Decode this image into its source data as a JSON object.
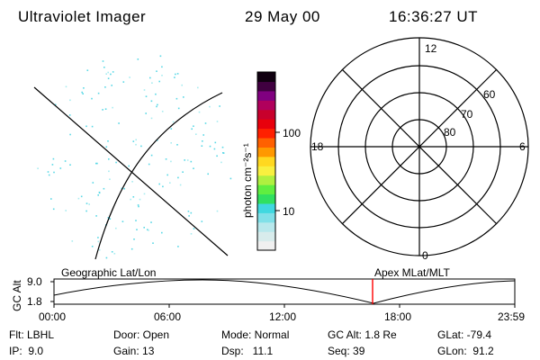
{
  "header": {
    "instrument": "Ultraviolet Imager",
    "date": "29 May 00",
    "time": "16:36:27 UT"
  },
  "colorbar": {
    "unit_label": "photon cm⁻²s⁻¹",
    "ticks": [
      "100",
      "10"
    ],
    "colors": [
      "#f0f0f0",
      "#d8ecec",
      "#b8e8ec",
      "#80e0e8",
      "#40d8e0",
      "#30e060",
      "#60ee40",
      "#b0f040",
      "#f8f040",
      "#ffd820",
      "#ff9800",
      "#ff6000",
      "#ff2000",
      "#e8000c",
      "#c8002c",
      "#b0005c",
      "#800080",
      "#400040",
      "#100010"
    ]
  },
  "polar": {
    "mlt_labels": {
      "top": "12",
      "left": "18",
      "right": "6",
      "bottom": "0"
    },
    "lat_labels": [
      "60",
      "70",
      "80"
    ]
  },
  "timeline": {
    "left_label": "Geographic Lat/Lon",
    "right_label": "Apex MLat/MLT",
    "yaxis_title": "GC Alt",
    "ytick_top": "9.0",
    "ytick_bottom": "1.8",
    "xticks": [
      "00:00",
      "06:00",
      "12:00",
      "18:00",
      "23:59"
    ],
    "marker_color": "#ff0000"
  },
  "footer": {
    "row1": {
      "flt": "Flt: LBHL",
      "door": "Door: Open",
      "mode": "Mode: Normal",
      "gcalt": "GC Alt: 1.8 Re",
      "glat": "GLat: -79.4"
    },
    "row2": {
      "ip": "IP:  9.0",
      "gain": "Gain: 13",
      "dsp": "Dsp:   11.1",
      "seq": "Seq: 39",
      "glon": "GLon:  91.2"
    }
  }
}
